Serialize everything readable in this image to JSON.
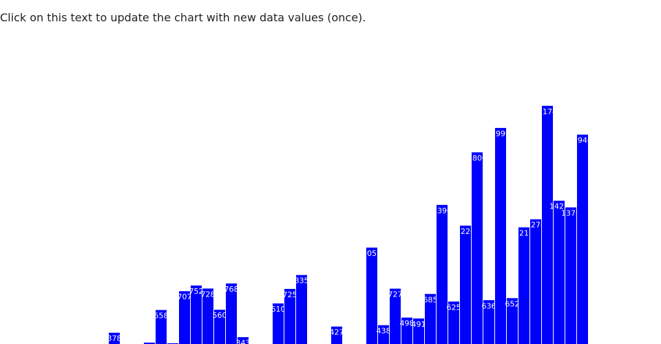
{
  "chart_data": {
    "type": "bar",
    "title": "Click on this text to update the chart with new data values (once).",
    "values": [
      378,
      null,
      null,
      300,
      558,
      295,
      707,
      752,
      728,
      560,
      768,
      343,
      null,
      null,
      610,
      725,
      835,
      null,
      null,
      427,
      null,
      null,
      1052,
      438,
      727,
      498,
      491,
      685,
      1390,
      625,
      1226,
      1806,
      636,
      1999,
      652,
      1212,
      1276,
      2174,
      1423,
      1370,
      1946
    ],
    "color": "#0000ff",
    "ylim": [
      289,
      2467
    ]
  }
}
